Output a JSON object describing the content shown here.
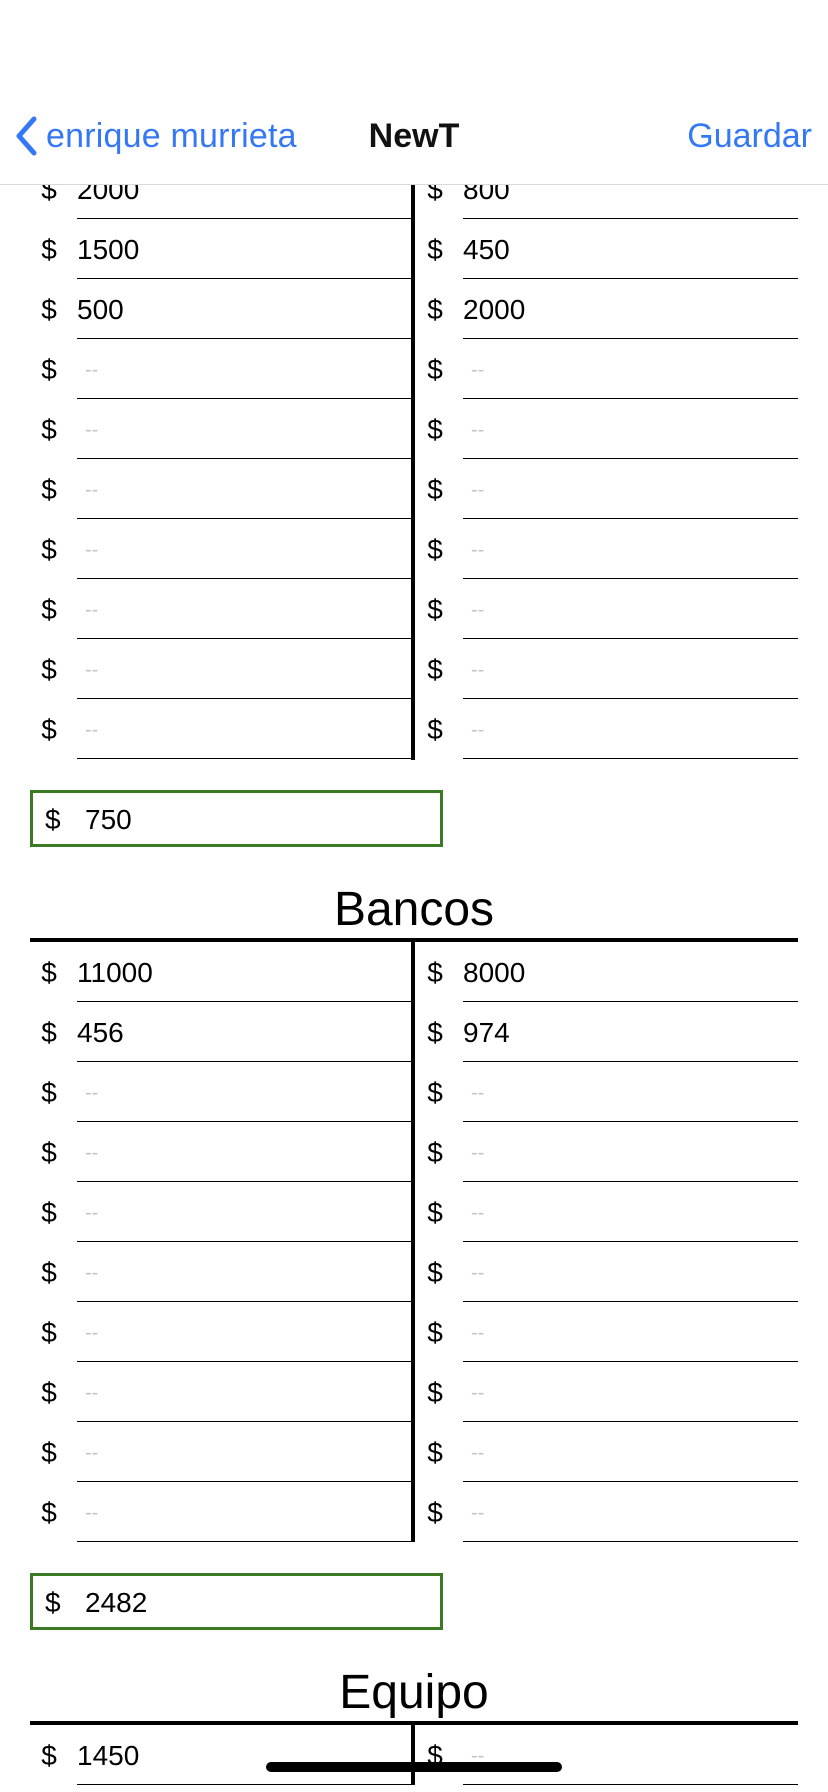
{
  "nav": {
    "back_label": "enrique murrieta",
    "title": "NewT",
    "save_label": "Guardar"
  },
  "currency_symbol": "$",
  "placeholder": "--",
  "accent_color": "#3478f6",
  "total_border_color": "#3a7a22",
  "sections": [
    {
      "title": "",
      "debe": [
        "2000",
        "1500",
        "500",
        "",
        "",
        "",
        "",
        "",
        "",
        ""
      ],
      "haber": [
        "800",
        "450",
        "2000",
        "",
        "",
        "",
        "",
        "",
        "",
        ""
      ],
      "total": "750"
    },
    {
      "title": "Bancos",
      "debe": [
        "11000",
        "456",
        "",
        "",
        "",
        "",
        "",
        "",
        "",
        ""
      ],
      "haber": [
        "8000",
        "974",
        "",
        "",
        "",
        "",
        "",
        "",
        "",
        ""
      ],
      "total": "2482"
    },
    {
      "title": "Equipo",
      "debe": [
        "1450"
      ],
      "haber": [
        ""
      ],
      "total": ""
    }
  ]
}
